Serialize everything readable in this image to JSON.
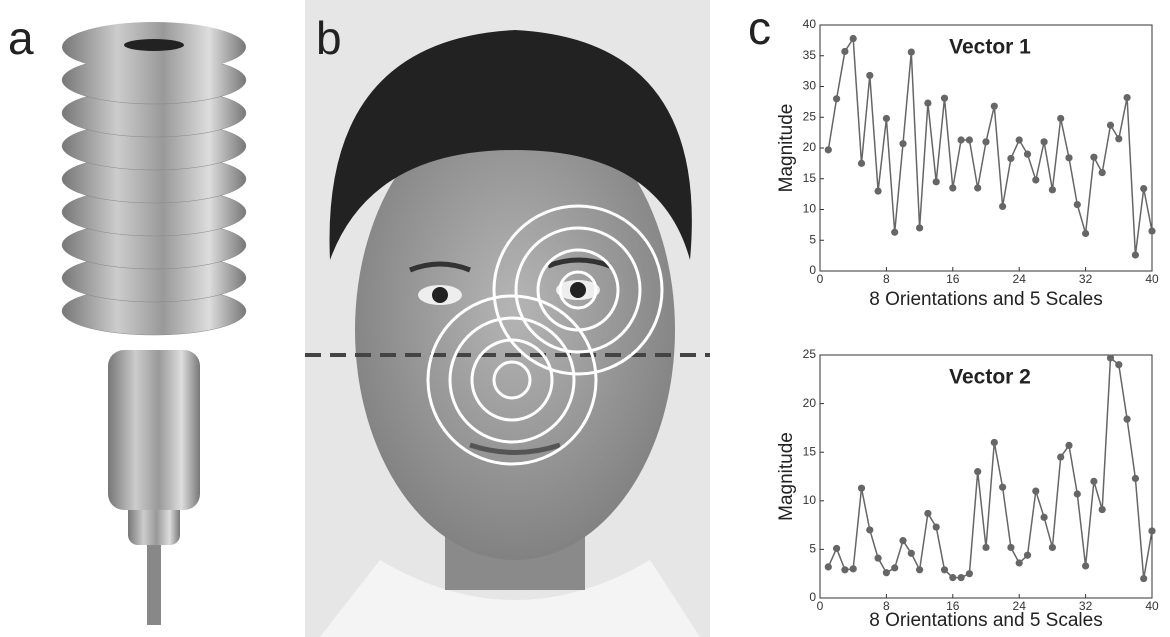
{
  "panel_labels": [
    "a",
    "b",
    "c"
  ],
  "chart_data": [
    {
      "type": "line",
      "title": "Vector 1",
      "xlabel": "8 Orientations and 5 Scales",
      "ylabel": "Magnitude",
      "x": [
        1,
        2,
        3,
        4,
        5,
        6,
        7,
        8,
        9,
        10,
        11,
        12,
        13,
        14,
        15,
        16,
        17,
        18,
        19,
        20,
        21,
        22,
        23,
        24,
        25,
        26,
        27,
        28,
        29,
        30,
        31,
        32,
        33,
        34,
        35,
        36,
        37,
        38,
        39,
        40
      ],
      "series": [
        {
          "color": "#666666",
          "values": [
            19.7,
            28,
            35.7,
            37.8,
            17.5,
            31.8,
            13,
            24.8,
            6.3,
            20.7,
            35.6,
            7,
            27.3,
            14.5,
            28.1,
            13.5,
            21.3,
            21.3,
            13.5,
            21,
            26.8,
            10.5,
            18.3,
            21.3,
            19,
            14.8,
            21,
            13.2,
            24.8,
            18.4,
            10.8,
            6.1,
            18.5,
            16,
            23.7,
            21.5,
            28.2,
            2.6,
            13.4,
            6.5
          ]
        }
      ],
      "xlim": [
        0,
        40
      ],
      "xticks": [
        0,
        8,
        16,
        24,
        32,
        40
      ],
      "ylim": [
        0,
        40
      ],
      "yticks": [
        0,
        5,
        10,
        15,
        20,
        25,
        30,
        35,
        40
      ]
    },
    {
      "type": "line",
      "title": "Vector 2",
      "xlabel": "8 Orientations and 5 Scales",
      "ylabel": "Magnitude",
      "x": [
        1,
        2,
        3,
        4,
        5,
        6,
        7,
        8,
        9,
        10,
        11,
        12,
        13,
        14,
        15,
        16,
        17,
        18,
        19,
        20,
        21,
        22,
        23,
        24,
        25,
        26,
        27,
        28,
        29,
        30,
        31,
        32,
        33,
        34,
        35,
        36,
        37,
        38,
        39,
        40
      ],
      "series": [
        {
          "color": "#666666",
          "values": [
            3.2,
            5.1,
            2.9,
            3,
            11.3,
            7,
            4.1,
            2.6,
            3.1,
            5.9,
            4.6,
            2.9,
            8.7,
            7.3,
            2.9,
            2.1,
            2.1,
            2.5,
            13,
            5.2,
            16,
            11.4,
            5.2,
            3.6,
            4.4,
            11,
            8.3,
            5.2,
            14.5,
            15.7,
            10.7,
            3.3,
            12,
            9.1,
            24.7,
            24,
            18.4,
            12.3,
            2,
            6.9
          ]
        }
      ],
      "xlim": [
        0,
        40
      ],
      "xticks": [
        0,
        8,
        16,
        24,
        32,
        40
      ],
      "ylim": [
        0,
        25
      ],
      "yticks": [
        0,
        5,
        10,
        15,
        20,
        25
      ]
    }
  ]
}
